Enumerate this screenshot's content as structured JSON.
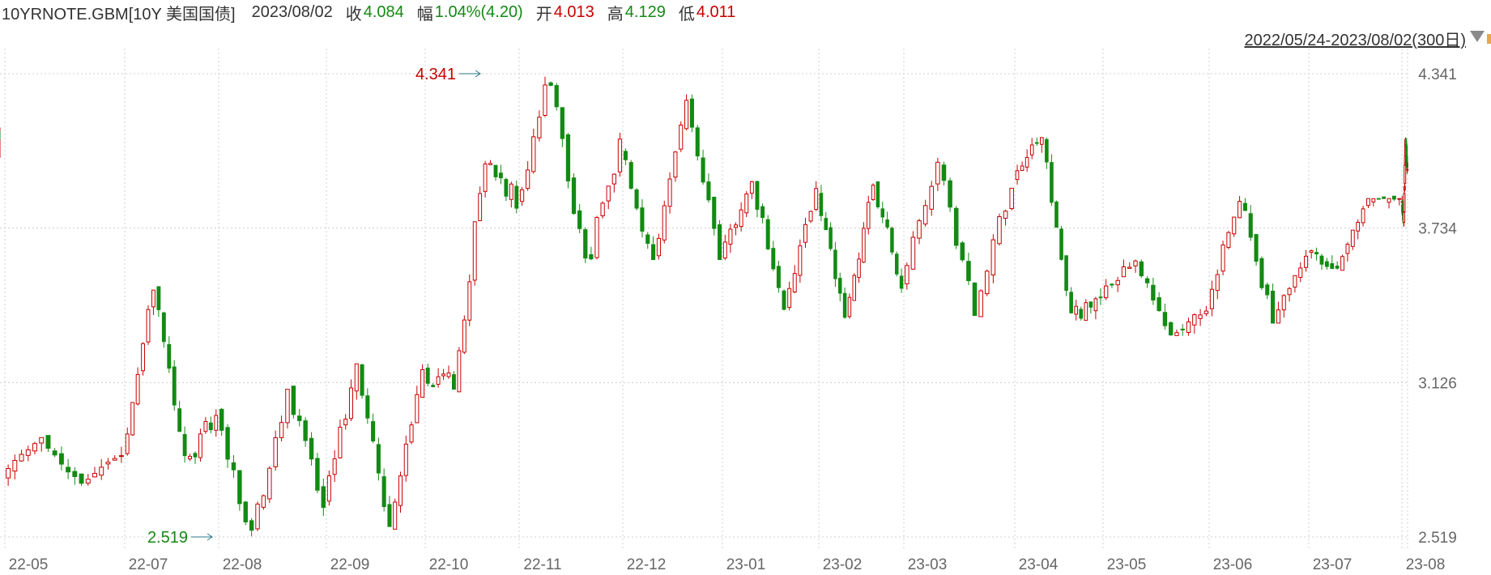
{
  "header": {
    "symbol": "10YRNOTE.GBM[10Y 美国国债]",
    "date": "2023/08/02",
    "close_label": "收",
    "close": "4.084",
    "change_label": "幅",
    "change": "1.04%(4.20)",
    "open_label": "开",
    "open": "4.013",
    "high_label": "高",
    "high": "4.129",
    "low_label": "低",
    "low": "4.011"
  },
  "range": {
    "label": "2022/05/24-2023/08/02(300日)",
    "icon": "dropdown-triangle-icon"
  },
  "colors": {
    "up": "#c80000",
    "down": "#138a13",
    "grid": "#cfcfcf",
    "axis_text": "#666666"
  },
  "chart_data": {
    "type": "candlestick",
    "title": "",
    "xlabel": "",
    "ylabel": "",
    "x_ticks": [
      "22-05",
      "22-07",
      "22-08",
      "22-09",
      "22-10",
      "22-11",
      "22-12",
      "23-01",
      "23-02",
      "23-03",
      "23-04",
      "23-05",
      "23-06",
      "23-07",
      "23-08"
    ],
    "y_ticks": [
      "4.341",
      "3.734",
      "3.126",
      "2.519"
    ],
    "ylim": [
      2.519,
      4.341
    ],
    "grid": true,
    "period": {
      "start": "2022-05-24",
      "end": "2023-08-02",
      "trading_days": 300
    },
    "annotations": [
      {
        "label": "4.341",
        "kind": "high",
        "month": "22-10"
      },
      {
        "label": "2.519",
        "kind": "low",
        "month": "22-07"
      }
    ],
    "monthly_ohlc": [
      {
        "month": "22-05",
        "open": 2.76,
        "high": 2.91,
        "low": 2.72,
        "close": 2.85
      },
      {
        "month": "22-06",
        "open": 2.85,
        "high": 3.49,
        "low": 2.8,
        "close": 3.01
      },
      {
        "month": "22-07",
        "open": 3.01,
        "high": 3.1,
        "low": 2.52,
        "close": 2.65
      },
      {
        "month": "22-08",
        "open": 2.65,
        "high": 3.2,
        "low": 2.56,
        "close": 3.19
      },
      {
        "month": "22-09",
        "open": 3.19,
        "high": 4.01,
        "low": 3.1,
        "close": 3.83
      },
      {
        "month": "22-10",
        "open": 3.83,
        "high": 4.341,
        "low": 3.57,
        "close": 4.05
      },
      {
        "month": "22-11",
        "open": 4.05,
        "high": 4.26,
        "low": 3.61,
        "close": 3.61
      },
      {
        "month": "22-12",
        "open": 3.61,
        "high": 3.92,
        "low": 3.41,
        "close": 3.88
      },
      {
        "month": "23-01",
        "open": 3.88,
        "high": 3.91,
        "low": 3.37,
        "close": 3.51
      },
      {
        "month": "23-02",
        "open": 3.51,
        "high": 4.01,
        "low": 3.39,
        "close": 3.92
      },
      {
        "month": "23-03",
        "open": 3.92,
        "high": 4.09,
        "low": 3.37,
        "close": 3.47
      },
      {
        "month": "23-04",
        "open": 3.47,
        "high": 3.61,
        "low": 3.31,
        "close": 3.42
      },
      {
        "month": "23-05",
        "open": 3.42,
        "high": 3.86,
        "low": 3.36,
        "close": 3.64
      },
      {
        "month": "23-06",
        "open": 3.64,
        "high": 3.85,
        "low": 3.57,
        "close": 3.84
      },
      {
        "month": "23-07",
        "open": 3.84,
        "high": 4.09,
        "low": 3.74,
        "close": 3.97
      },
      {
        "month": "23-08",
        "open": 4.013,
        "high": 4.129,
        "low": 4.011,
        "close": 4.084
      }
    ]
  }
}
